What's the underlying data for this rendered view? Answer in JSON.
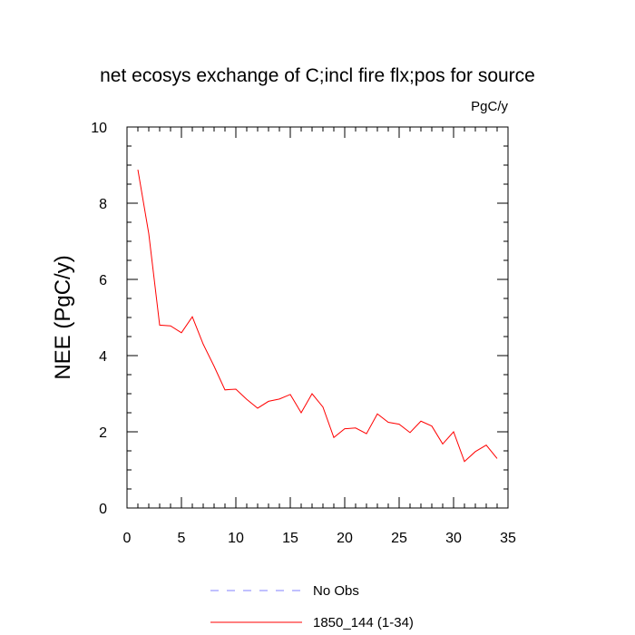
{
  "chart_data": {
    "type": "line",
    "title": "net ecosys exchange of C;incl fire flx;pos for source",
    "units": "PgC/y",
    "ylabel": "NEE  (PgC/y)",
    "xlabel": "",
    "xlim": [
      0,
      35
    ],
    "ylim": [
      0,
      10
    ],
    "xticks": [
      0,
      5,
      10,
      15,
      20,
      25,
      30,
      35
    ],
    "yticks": [
      0,
      2,
      4,
      6,
      8,
      10
    ],
    "grid": false,
    "legend_position": "bottom",
    "series": [
      {
        "name": "No Obs",
        "color": "#8080ff",
        "dash": "dashed",
        "x": [],
        "y": []
      },
      {
        "name": "1850_144 (1-34)",
        "color": "#ff0000",
        "dash": "solid",
        "x": [
          1,
          2,
          3,
          4,
          5,
          6,
          7,
          8,
          9,
          10,
          11,
          12,
          13,
          14,
          15,
          16,
          17,
          18,
          19,
          20,
          21,
          22,
          23,
          24,
          25,
          26,
          27,
          28,
          29,
          30,
          31,
          32,
          33,
          34
        ],
        "y": [
          8.88,
          7.2,
          4.8,
          4.78,
          4.6,
          5.02,
          4.3,
          3.72,
          3.1,
          3.12,
          2.85,
          2.62,
          2.8,
          2.86,
          2.98,
          2.5,
          3.0,
          2.65,
          1.85,
          2.08,
          2.1,
          1.95,
          2.47,
          2.25,
          2.2,
          1.98,
          2.28,
          2.15,
          1.68,
          2.0,
          1.22,
          1.48,
          1.65,
          1.3
        ]
      }
    ]
  }
}
